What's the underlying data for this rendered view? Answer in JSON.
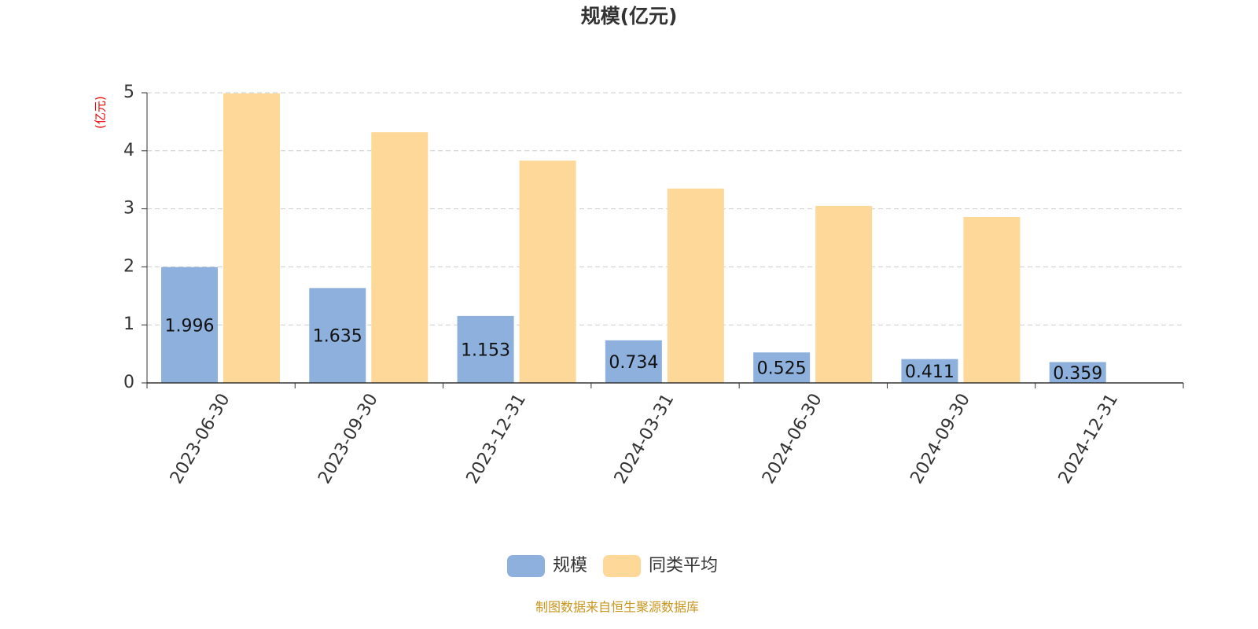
{
  "chart_data": {
    "type": "bar",
    "title": "规模(亿元)",
    "y_axis_label": "(亿元)",
    "categories": [
      "2023-06-30",
      "2023-09-30",
      "2023-12-31",
      "2024-03-31",
      "2024-06-30",
      "2024-09-30",
      "2024-12-31"
    ],
    "series": [
      {
        "name": "规模",
        "color": "#8eb0dc",
        "values": [
          1.996,
          1.635,
          1.153,
          0.734,
          0.525,
          0.411,
          0.359
        ]
      },
      {
        "name": "同类平均",
        "color": "#fed899",
        "values": [
          4.99,
          4.32,
          3.83,
          3.35,
          3.05,
          2.86,
          null
        ]
      }
    ],
    "ylim": [
      0,
      5
    ],
    "yticks": [
      0,
      1,
      2,
      3,
      4,
      5
    ],
    "grid": true,
    "legend": "bottom",
    "source": "制图数据来自恒生聚源数据库"
  }
}
